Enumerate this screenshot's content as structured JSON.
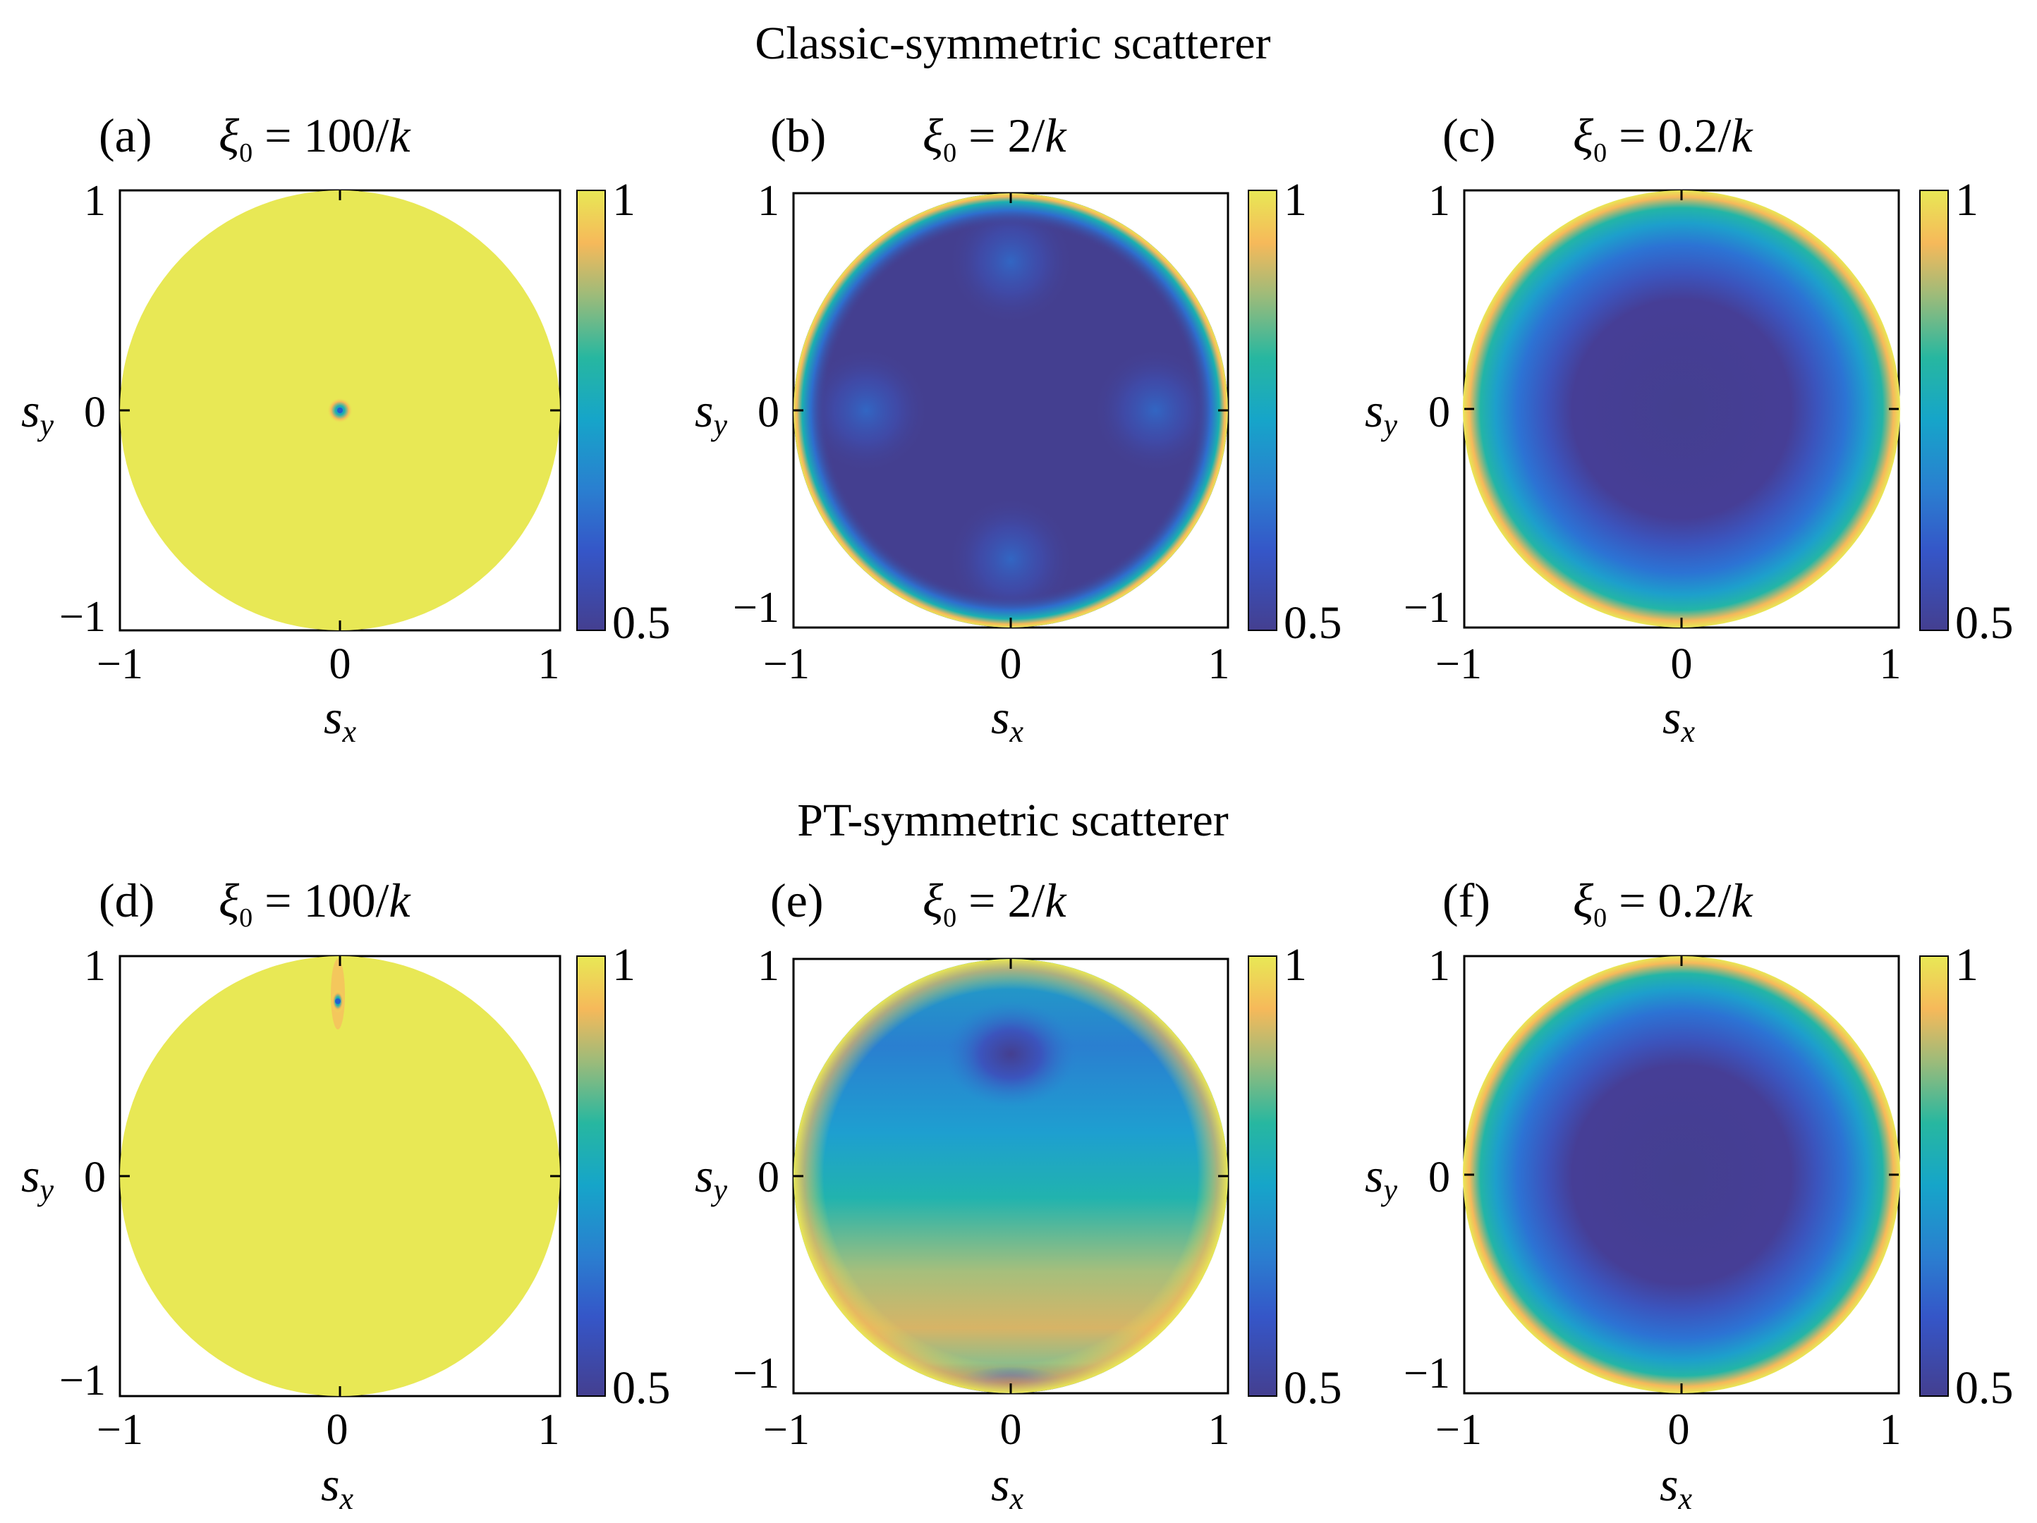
{
  "figure": {
    "row_titles": [
      "Classic-symmetric scatterer",
      "PT-symmetric scatterer"
    ]
  },
  "chart_data": [
    {
      "type": "heatmap",
      "id": "a",
      "panel_label": "(a)",
      "xi_value": "100",
      "xi_symbol": "ξ",
      "xi_subscript": "0",
      "xi_eq": " = ",
      "xi_suffix": "/",
      "k_symbol": "k",
      "xlabel": "s",
      "xlabel_sub": "x",
      "ylabel": "s",
      "ylabel_sub": "y",
      "x_ticks": [
        "−1",
        "0",
        "1"
      ],
      "y_ticks": [
        "1",
        "0",
        "−1"
      ],
      "xlim": [
        -1,
        1
      ],
      "ylim": [
        -1,
        1
      ],
      "colorbar": {
        "ticks": [
          "1",
          "0.5"
        ],
        "range": [
          0.5,
          1
        ]
      },
      "description_value": "uniform ≈1 inside unit disk, sharp dip at (0,0)"
    },
    {
      "type": "heatmap",
      "id": "b",
      "panel_label": "(b)",
      "xi_value": "2",
      "xi_symbol": "ξ",
      "xi_subscript": "0",
      "xi_eq": " = ",
      "xi_suffix": "/",
      "k_symbol": "k",
      "xlabel": "s",
      "xlabel_sub": "x",
      "ylabel": "s",
      "ylabel_sub": "y",
      "x_ticks": [
        "−1",
        "0",
        "1"
      ],
      "y_ticks": [
        "1",
        "0",
        "−1"
      ],
      "xlim": [
        -1,
        1
      ],
      "ylim": [
        -1,
        1
      ],
      "colorbar": {
        "ticks": [
          "1",
          "0.5"
        ],
        "range": [
          0.5,
          1
        ]
      }
    },
    {
      "type": "heatmap",
      "id": "c",
      "panel_label": "(c)",
      "xi_value": "0.2",
      "xi_symbol": "ξ",
      "xi_subscript": "0",
      "xi_eq": " = ",
      "xi_suffix": "/",
      "k_symbol": "k",
      "xlabel": "s",
      "xlabel_sub": "x",
      "ylabel": "s",
      "ylabel_sub": "y",
      "x_ticks": [
        "−1",
        "0",
        "1"
      ],
      "y_ticks": [
        "1",
        "0",
        "−1"
      ],
      "xlim": [
        -1,
        1
      ],
      "ylim": [
        -1,
        1
      ],
      "colorbar": {
        "ticks": [
          "1",
          "0.5"
        ],
        "range": [
          0.5,
          1
        ]
      }
    },
    {
      "type": "heatmap",
      "id": "d",
      "panel_label": "(d)",
      "xi_value": "100",
      "xi_symbol": "ξ",
      "xi_subscript": "0",
      "xi_eq": " = ",
      "xi_suffix": "/",
      "k_symbol": "k",
      "xlabel": "s",
      "xlabel_sub": "x",
      "ylabel": "s",
      "ylabel_sub": "y",
      "x_ticks": [
        "−1",
        "0",
        "1"
      ],
      "y_ticks": [
        "1",
        "0",
        "−1"
      ],
      "xlim": [
        -1,
        1
      ],
      "ylim": [
        -1,
        1
      ],
      "colorbar": {
        "ticks": [
          "1",
          "0.5"
        ],
        "range": [
          0.5,
          1
        ]
      }
    },
    {
      "type": "heatmap",
      "id": "e",
      "panel_label": "(e)",
      "xi_value": "2",
      "xi_symbol": "ξ",
      "xi_subscript": "0",
      "xi_eq": " = ",
      "xi_suffix": "/",
      "k_symbol": "k",
      "xlabel": "s",
      "xlabel_sub": "x",
      "ylabel": "s",
      "ylabel_sub": "y",
      "x_ticks": [
        "−1",
        "0",
        "1"
      ],
      "y_ticks": [
        "1",
        "0",
        "−1"
      ],
      "xlim": [
        -1,
        1
      ],
      "ylim": [
        -1,
        1
      ],
      "colorbar": {
        "ticks": [
          "1",
          "0.5"
        ],
        "range": [
          0.5,
          1
        ]
      }
    },
    {
      "type": "heatmap",
      "id": "f",
      "panel_label": "(f)",
      "xi_value": "0.2",
      "xi_symbol": "ξ",
      "xi_subscript": "0",
      "xi_eq": " = ",
      "xi_suffix": "/",
      "k_symbol": "k",
      "xlabel": "s",
      "xlabel_sub": "x",
      "ylabel": "s",
      "ylabel_sub": "y",
      "x_ticks": [
        "−1",
        "0",
        "1"
      ],
      "y_ticks": [
        "1",
        "0",
        "−1"
      ],
      "xlim": [
        -1,
        1
      ],
      "ylim": [
        -1,
        1
      ],
      "colorbar": {
        "ticks": [
          "1",
          "0.5"
        ],
        "range": [
          0.5,
          1
        ]
      }
    }
  ],
  "colors": {
    "parula_low": "#443f90",
    "parula_blue": "#2a7fd0",
    "parula_teal": "#1ab0b0",
    "parula_orange": "#f6b95a",
    "parula_high": "#e8e855"
  }
}
